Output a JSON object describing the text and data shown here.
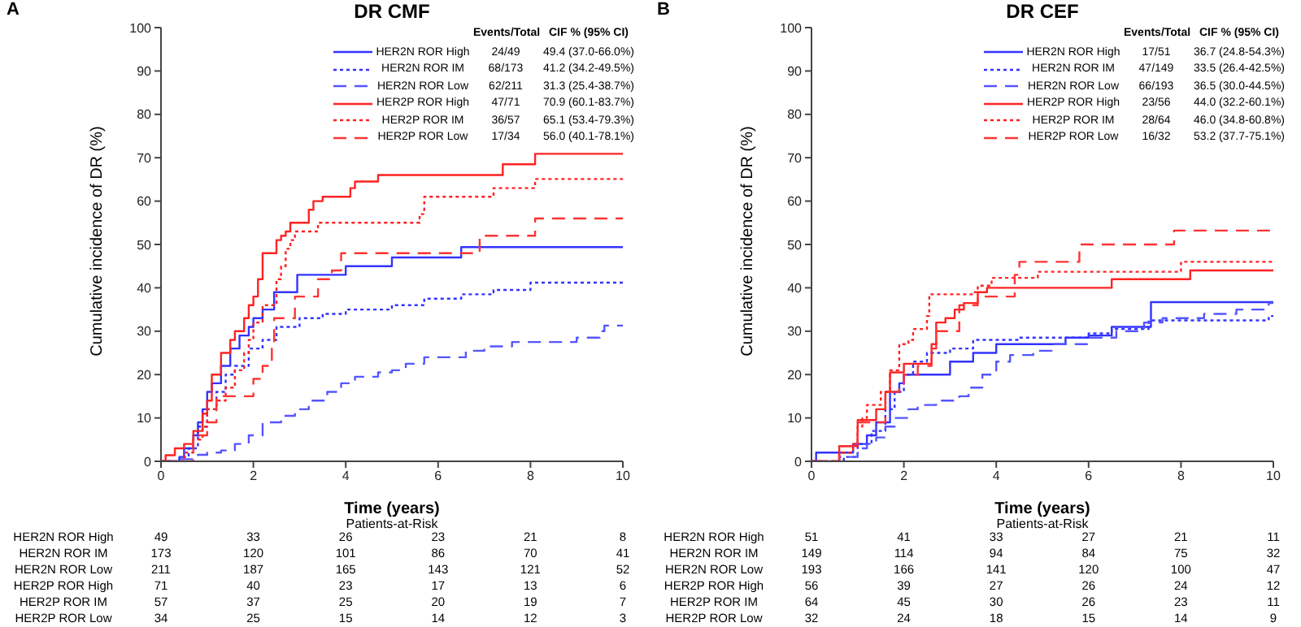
{
  "chart_data": [
    {
      "type": "step",
      "title": "DR CMF",
      "xlabel": "Time (years)",
      "ylabel": "Cumulative incidence of DR (%)",
      "xlim": [
        0,
        10
      ],
      "xticks": [
        0,
        2,
        4,
        6,
        8,
        10
      ],
      "ylim": [
        0,
        100
      ],
      "yticks": [
        0,
        10,
        20,
        30,
        40,
        50,
        60,
        70,
        80,
        90,
        100
      ],
      "legend": "top right",
      "series": [
        {
          "name": "HER2N ROR High",
          "color": "#3333ff",
          "line_style": "solid",
          "x": [
            0,
            0.1,
            0.4,
            0.5,
            0.7,
            0.8,
            0.9,
            1.0,
            1.1,
            1.3,
            1.5,
            1.7,
            1.9,
            2.0,
            2.2,
            2.45,
            2.95,
            4.0,
            5.0,
            6.5,
            10
          ],
          "values": [
            0,
            0,
            1,
            3,
            6,
            9,
            12,
            16,
            18,
            22,
            26,
            29,
            31,
            33,
            35,
            39,
            43,
            45,
            47,
            49.4,
            49.4
          ]
        },
        {
          "name": "HER2N ROR IM",
          "color": "#3333ff",
          "line_style": "dotted",
          "x": [
            0,
            0.4,
            0.6,
            0.8,
            1.0,
            1.2,
            1.4,
            1.6,
            1.9,
            2.2,
            2.5,
            3.0,
            3.5,
            4.0,
            5.0,
            5.7,
            6.5,
            7.2,
            8.0,
            10
          ],
          "values": [
            0,
            1,
            3,
            8,
            12,
            16,
            20,
            22,
            26,
            28,
            31,
            33,
            34,
            35,
            36,
            37.5,
            38.5,
            39.5,
            41.2,
            41.2
          ]
        },
        {
          "name": "HER2N ROR Low",
          "color": "#5555ff",
          "line_style": "dashed",
          "x": [
            0,
            0.4,
            0.8,
            1.0,
            1.3,
            1.6,
            1.9,
            2.2,
            2.6,
            2.9,
            3.2,
            3.6,
            3.9,
            4.2,
            4.7,
            5.0,
            5.3,
            5.7,
            6.6,
            7.0,
            7.6,
            9.0,
            9.5,
            9.6,
            10
          ],
          "values": [
            0,
            0.5,
            1.5,
            2,
            2.5,
            4,
            6,
            9,
            10.5,
            12,
            14,
            16,
            18,
            19.5,
            20.5,
            21,
            22.5,
            24,
            25.5,
            26.5,
            27.5,
            28.5,
            30,
            31.3,
            31.3
          ]
        },
        {
          "name": "HER2P ROR High",
          "color": "#ff2222",
          "line_style": "solid",
          "x": [
            0,
            0.1,
            0.3,
            0.5,
            0.7,
            0.9,
            1.0,
            1.1,
            1.3,
            1.5,
            1.6,
            1.8,
            1.9,
            2.0,
            2.1,
            2.2,
            2.5,
            2.6,
            2.7,
            2.8,
            3.2,
            3.3,
            3.5,
            4.1,
            4.2,
            4.7,
            7.4,
            8.1,
            10
          ],
          "values": [
            0,
            1.4,
            3,
            4,
            7,
            11,
            14,
            20,
            25,
            28,
            30,
            33,
            36,
            38,
            42,
            48,
            51,
            52,
            53,
            55,
            58,
            60,
            61,
            63,
            64.5,
            66,
            68.5,
            70.9,
            70.9
          ]
        },
        {
          "name": "HER2P ROR IM",
          "color": "#ff2222",
          "line_style": "dotted",
          "x": [
            0,
            0.5,
            0.7,
            0.9,
            1.0,
            1.2,
            1.4,
            1.6,
            1.8,
            1.9,
            2.0,
            2.2,
            2.5,
            2.6,
            2.7,
            2.8,
            2.9,
            3.4,
            5.6,
            5.7,
            7.2,
            8.1,
            10
          ],
          "values": [
            0,
            2,
            5,
            8,
            12,
            14,
            17,
            21,
            25,
            28,
            32,
            36,
            42,
            45,
            49,
            51,
            53,
            55,
            57,
            61,
            63,
            65.1,
            65.1
          ]
        },
        {
          "name": "HER2P ROR Low",
          "color": "#ff3333",
          "line_style": "dashed",
          "x": [
            0,
            0.7,
            1.0,
            1.2,
            2.0,
            2.2,
            2.4,
            2.45,
            2.9,
            3.4,
            3.7,
            3.9,
            6.9,
            8.1,
            10
          ],
          "values": [
            0,
            6,
            9,
            15,
            19,
            22,
            26,
            33,
            38,
            42,
            44,
            48,
            52,
            56,
            56
          ]
        }
      ],
      "annotations": [
        "A",
        "Events/Total",
        "CIF % (95% CI)",
        "24/49",
        "68/173",
        "62/211",
        "47/71",
        "36/57",
        "17/34",
        "49.4 (37.0-66.0%)",
        "41.2 (34.2-49.5%)",
        "31.3 (25.4-38.7%)",
        "70.9 (60.1-83.7%)",
        "65.1 (53.4-79.3%)",
        "56.0 (40.1-78.1%)",
        "Patients-at-Risk",
        "49",
        "33",
        "26",
        "23",
        "21",
        "8",
        "173",
        "120",
        "101",
        "86",
        "70",
        "41",
        "211",
        "187",
        "165",
        "143",
        "121",
        "52",
        "71",
        "40",
        "23",
        "17",
        "13",
        "6",
        "57",
        "37",
        "25",
        "20",
        "19",
        "7",
        "34",
        "25",
        "15",
        "14",
        "12",
        "3"
      ]
    },
    {
      "type": "step",
      "title": "DR CEF",
      "xlabel": "Time (years)",
      "ylabel": "Cumulative incidence of DR (%)",
      "xlim": [
        0,
        10
      ],
      "xticks": [
        0,
        2,
        4,
        6,
        8,
        10
      ],
      "ylim": [
        0,
        100
      ],
      "yticks": [
        0,
        10,
        20,
        30,
        40,
        50,
        60,
        70,
        80,
        90,
        100
      ],
      "legend": "top right",
      "series": [
        {
          "name": "HER2N ROR High",
          "color": "#3333ff",
          "line_style": "solid",
          "x": [
            0,
            0.1,
            0.9,
            1.2,
            1.4,
            1.7,
            1.9,
            2.0,
            3.0,
            3.5,
            4.0,
            5.5,
            6.0,
            6.5,
            7.35,
            10
          ],
          "values": [
            0,
            2,
            4,
            6,
            9,
            16,
            18,
            20,
            23,
            25,
            27,
            28.5,
            29,
            31,
            36.7,
            36.7
          ]
        },
        {
          "name": "HER2N ROR IM",
          "color": "#3333ff",
          "line_style": "dotted",
          "x": [
            0,
            0.7,
            1.0,
            1.3,
            1.6,
            1.8,
            2.0,
            2.2,
            2.5,
            3.0,
            3.5,
            4.5,
            6.0,
            6.5,
            7.3,
            9.9,
            10
          ],
          "values": [
            0,
            1,
            4,
            7,
            12,
            16,
            20,
            23,
            25,
            26,
            28,
            28.5,
            29.5,
            30.5,
            32.5,
            33.5,
            33.5
          ]
        },
        {
          "name": "HER2N ROR Low",
          "color": "#5555ff",
          "line_style": "dashed",
          "x": [
            0,
            0.6,
            1.0,
            1.2,
            1.4,
            1.6,
            1.8,
            2.1,
            2.3,
            2.7,
            3.2,
            3.4,
            3.7,
            4.0,
            4.3,
            4.8,
            5.2,
            6.0,
            6.6,
            7.2,
            7.6,
            8.5,
            9.2,
            9.9,
            10
          ],
          "values": [
            0,
            1,
            3,
            4,
            5.5,
            8,
            10,
            12,
            13,
            14,
            15,
            17,
            20,
            23,
            24.5,
            25.5,
            27,
            28.5,
            30,
            32,
            33,
            34,
            35,
            36.5,
            36.5
          ]
        },
        {
          "name": "HER2P ROR High",
          "color": "#ff2222",
          "line_style": "solid",
          "x": [
            0,
            0.6,
            1.0,
            1.4,
            1.6,
            1.7,
            2.0,
            2.6,
            2.7,
            2.9,
            3.1,
            3.3,
            3.6,
            3.8,
            6.5,
            8.2,
            10
          ],
          "values": [
            0,
            3.5,
            9.5,
            12,
            16,
            20.5,
            22.5,
            27,
            32,
            33,
            35,
            36.5,
            39,
            40,
            42,
            44,
            44
          ]
        },
        {
          "name": "HER2P ROR IM",
          "color": "#ff2222",
          "line_style": "dotted",
          "x": [
            0,
            0.6,
            0.9,
            1.0,
            1.1,
            1.2,
            1.5,
            1.7,
            1.9,
            2.1,
            2.2,
            2.5,
            2.55,
            3.5,
            3.6,
            3.9,
            4.9,
            8.0,
            10
          ],
          "values": [
            0,
            2,
            4,
            8,
            10,
            13,
            16,
            21,
            27,
            28,
            30.5,
            33.5,
            38.5,
            39,
            40.5,
            42.3,
            43.7,
            46,
            46
          ]
        },
        {
          "name": "HER2P ROR Low",
          "color": "#ff3333",
          "line_style": "dashed",
          "x": [
            0,
            0.6,
            1.0,
            1.6,
            1.9,
            2.0,
            2.3,
            2.6,
            2.7,
            3.2,
            3.6,
            4.4,
            4.5,
            5.8,
            7.85,
            10
          ],
          "values": [
            0,
            3.5,
            9,
            16,
            17,
            20,
            22,
            26,
            30,
            36,
            38,
            43,
            46,
            50,
            53.2,
            53.2
          ]
        }
      ],
      "annotations": [
        "B",
        "Events/Total",
        "CIF % (95% CI)",
        "17/51",
        "47/149",
        "66/193",
        "23/56",
        "28/64",
        "16/32",
        "36.7 (24.8-54.3%)",
        "33.5 (26.4-42.5%)",
        "36.5 (30.0-44.5%)",
        "44.0 (32.2-60.1%)",
        "46.0 (34.8-60.8%)",
        "53.2 (37.7-75.1%)",
        "Patients-at-Risk",
        "51",
        "41",
        "33",
        "27",
        "21",
        "11",
        "149",
        "114",
        "94",
        "84",
        "75",
        "32",
        "193",
        "166",
        "141",
        "120",
        "100",
        "47",
        "56",
        "39",
        "27",
        "26",
        "24",
        "12",
        "64",
        "45",
        "30",
        "26",
        "23",
        "11",
        "32",
        "24",
        "18",
        "15",
        "14",
        "9"
      ]
    }
  ]
}
